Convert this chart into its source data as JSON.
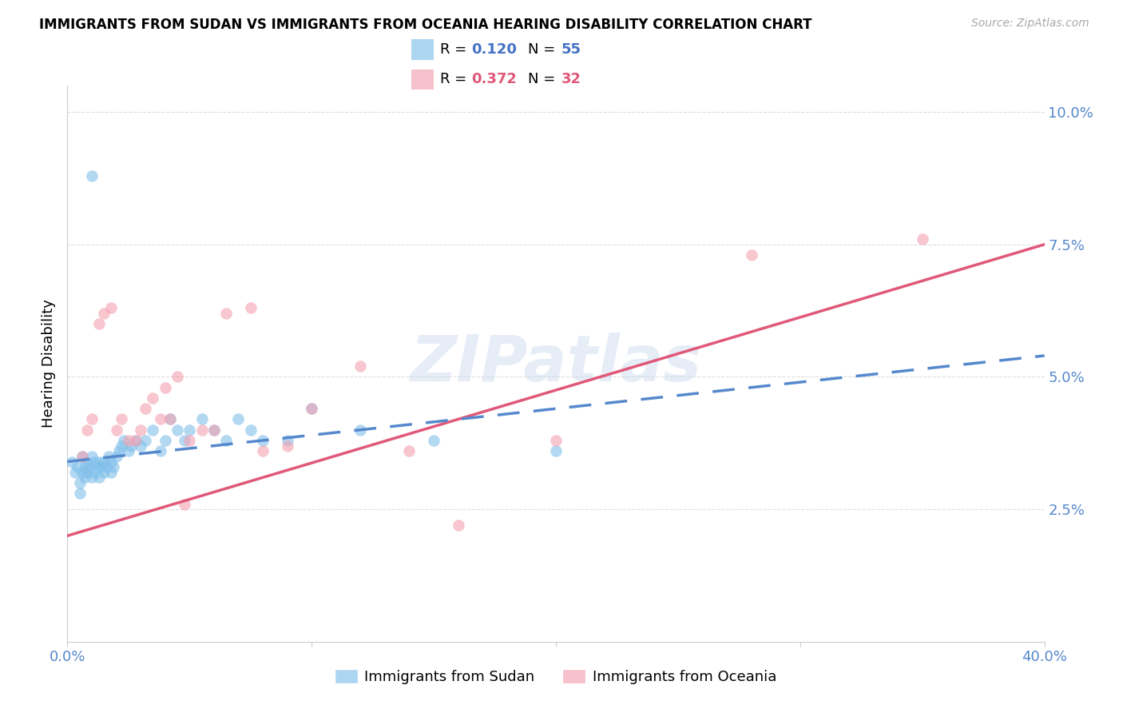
{
  "title": "IMMIGRANTS FROM SUDAN VS IMMIGRANTS FROM OCEANIA HEARING DISABILITY CORRELATION CHART",
  "source": "Source: ZipAtlas.com",
  "ylabel": "Hearing Disability",
  "xlim": [
    0.0,
    0.4
  ],
  "ylim": [
    0.0,
    0.105
  ],
  "sudan_color": "#7fbfea",
  "oceania_color": "#f4a0b0",
  "sudan_R": 0.12,
  "sudan_N": 55,
  "oceania_R": 0.372,
  "oceania_N": 32,
  "sudan_line_color": "#5588cc",
  "oceania_line_color": "#e05878",
  "watermark": "ZIPatlas",
  "sudan_scatter_x": [
    0.002,
    0.003,
    0.004,
    0.005,
    0.005,
    0.006,
    0.006,
    0.007,
    0.007,
    0.008,
    0.008,
    0.009,
    0.01,
    0.01,
    0.011,
    0.011,
    0.012,
    0.013,
    0.013,
    0.014,
    0.015,
    0.015,
    0.016,
    0.017,
    0.018,
    0.018,
    0.019,
    0.02,
    0.021,
    0.022,
    0.023,
    0.025,
    0.026,
    0.028,
    0.03,
    0.032,
    0.035,
    0.038,
    0.04,
    0.042,
    0.045,
    0.048,
    0.05,
    0.055,
    0.06,
    0.065,
    0.07,
    0.075,
    0.08,
    0.09,
    0.1,
    0.12,
    0.15,
    0.2,
    0.01
  ],
  "sudan_scatter_y": [
    0.034,
    0.032,
    0.033,
    0.03,
    0.028,
    0.035,
    0.032,
    0.031,
    0.033,
    0.032,
    0.034,
    0.033,
    0.031,
    0.035,
    0.034,
    0.032,
    0.033,
    0.031,
    0.034,
    0.033,
    0.032,
    0.034,
    0.033,
    0.035,
    0.032,
    0.034,
    0.033,
    0.035,
    0.036,
    0.037,
    0.038,
    0.036,
    0.037,
    0.038,
    0.037,
    0.038,
    0.04,
    0.036,
    0.038,
    0.042,
    0.04,
    0.038,
    0.04,
    0.042,
    0.04,
    0.038,
    0.042,
    0.04,
    0.038,
    0.038,
    0.044,
    0.04,
    0.038,
    0.036,
    0.088
  ],
  "oceania_scatter_x": [
    0.006,
    0.008,
    0.01,
    0.013,
    0.015,
    0.018,
    0.02,
    0.022,
    0.025,
    0.028,
    0.03,
    0.032,
    0.035,
    0.038,
    0.04,
    0.042,
    0.045,
    0.048,
    0.05,
    0.055,
    0.06,
    0.065,
    0.075,
    0.08,
    0.09,
    0.1,
    0.12,
    0.14,
    0.16,
    0.2,
    0.28,
    0.35
  ],
  "oceania_scatter_y": [
    0.035,
    0.04,
    0.042,
    0.06,
    0.062,
    0.063,
    0.04,
    0.042,
    0.038,
    0.038,
    0.04,
    0.044,
    0.046,
    0.042,
    0.048,
    0.042,
    0.05,
    0.026,
    0.038,
    0.04,
    0.04,
    0.062,
    0.063,
    0.036,
    0.037,
    0.044,
    0.052,
    0.036,
    0.022,
    0.038,
    0.073,
    0.076
  ],
  "sudan_line_x0": 0.0,
  "sudan_line_y0": 0.034,
  "sudan_line_x1": 0.4,
  "sudan_line_y1": 0.054,
  "oceania_line_x0": 0.0,
  "oceania_line_y0": 0.02,
  "oceania_line_x1": 0.4,
  "oceania_line_y1": 0.075
}
